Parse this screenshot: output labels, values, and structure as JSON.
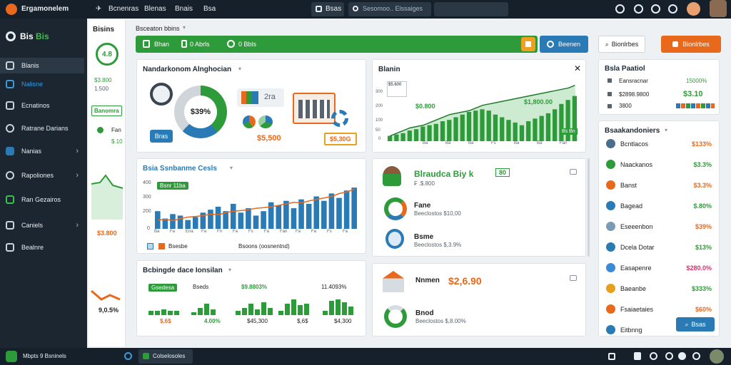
{
  "topbar": {
    "app_name": "Ergamonelem",
    "nav": [
      "Bcnenras",
      "Blenas",
      "Bnais",
      "Bsa"
    ],
    "view_label": "Bsas",
    "search_placeholder": "Sesomoo..  Elssaiges"
  },
  "sidebar": {
    "logo": "Bis",
    "logo_accent": "Bis",
    "items": [
      {
        "label": "Blanis",
        "icon": "home-icon",
        "active": true
      },
      {
        "label": "Nalisne",
        "icon": "trend-icon"
      },
      {
        "label": "Ecnatinos",
        "icon": "document-icon"
      },
      {
        "label": "Ratrane Darians",
        "icon": "search-icon"
      },
      {
        "label": "Nanias",
        "icon": "grid-icon",
        "chevron": true
      },
      {
        "label": "Rapoliones",
        "icon": "gear-icon",
        "chevron": true
      },
      {
        "label": "Ran Gezairos",
        "icon": "leaf-icon"
      },
      {
        "label": "Caniels",
        "icon": "lock-icon",
        "chevron": true
      },
      {
        "label": "Bealnre",
        "icon": "calendar-icon"
      }
    ]
  },
  "subnav": {
    "title": "Bisins",
    "badge": "4.8",
    "metric1": "$3.800",
    "metric1b": "1.500",
    "tag": "Banomra",
    "item2": "Fan",
    "item2_val": "$.10",
    "bottom_val": "$3.800",
    "bottom_pct": "9,0.5%"
  },
  "breadcrumb": "Bsceaton bbins",
  "toolbar": {
    "tabs": [
      "Bhan",
      "0 Abrls",
      "0 Bbls"
    ],
    "share": "Beenen"
  },
  "top_right": {
    "back_label": "Bionlrbes",
    "action_label": "Bionlrbes"
  },
  "card1": {
    "title": "Nandarkonom Alnghocian",
    "donut_pct": "$39%",
    "button": "Bras",
    "price": "$5,500",
    "chip": "$5,30G",
    "small": "2ra"
  },
  "card2": {
    "title": "Bsia Ssnbanme Cesls",
    "chip": "Bsnr 11ba",
    "ticks": [
      "400",
      "300",
      "200",
      "0"
    ],
    "xticks": [
      "Ba",
      "Fa",
      "Ena",
      "Fa",
      "Fn",
      "Fa",
      "Fs",
      "Fa",
      "Fan",
      "Fa",
      "Fa",
      "Fs",
      "Fa"
    ],
    "legend1": "Bsesbe",
    "legend2": "Bsoons (oosnentnd)",
    "chart_data": {
      "type": "bar",
      "values": [
        60,
        35,
        50,
        45,
        30,
        40,
        55,
        65,
        75,
        60,
        85,
        55,
        70,
        45,
        60,
        90,
        80,
        95,
        70,
        100,
        85,
        110,
        95,
        120,
        105,
        130,
        140
      ],
      "line": [
        30,
        32,
        28,
        35,
        40,
        42,
        45,
        50,
        48,
        55,
        60,
        62,
        65,
        70,
        72,
        75,
        80,
        85,
        90,
        88,
        95,
        100,
        105,
        110,
        120,
        125,
        135
      ]
    }
  },
  "card3": {
    "title": "Bcbingde dace Ionsilan",
    "chip": "Gsedesa",
    "stats": [
      "Bseds",
      "$9.8803%",
      "11.4093%"
    ],
    "bottom": [
      "$,6$",
      "4.00%",
      "$45,300",
      "$,6$",
      "$4,300"
    ]
  },
  "card4": {
    "title": "Blanin",
    "legend": "$5.600",
    "chip": "Bs Bn",
    "v1": "$0.800",
    "v2": "$1,800.00",
    "ticks": [
      "300",
      "200",
      "100",
      "50",
      "0"
    ],
    "xticks": [
      "Ba",
      "Ba",
      "Ba",
      "Fs",
      "Ba",
      "Ba",
      "Fan"
    ],
    "chart_data": {
      "type": "bar",
      "values": [
        20,
        25,
        30,
        40,
        45,
        55,
        60,
        65,
        75,
        80,
        90,
        100,
        110,
        115,
        120,
        115,
        100,
        90,
        80,
        70,
        60,
        75,
        85,
        95,
        105,
        120,
        140,
        155,
        170
      ],
      "line": [
        20,
        30,
        40,
        50,
        55,
        60,
        70,
        80,
        90,
        100,
        105,
        110,
        115,
        125,
        135,
        140,
        145,
        150,
        155,
        160,
        165,
        170,
        175,
        180,
        185,
        190,
        195,
        200,
        210
      ]
    }
  },
  "card5": {
    "name": "Blraudca Biy k",
    "name_tag": "80",
    "subtitle": "₣ .$.800",
    "row1_label": "Fane",
    "row1_sub": "Beeclostos $10,00",
    "row2_label": "Bsme",
    "row2_sub": "Beeclostos $,3.9%"
  },
  "card6": {
    "title": "Nnmen",
    "value": "$2,6.90",
    "row_label": "Bnod",
    "row_sub": "Beeclostos $,8.00%"
  },
  "right_panel": {
    "title": "Bsla Paatiol",
    "rows": [
      {
        "label": "Eansracnar",
        "value": "15000%"
      },
      {
        "label": "$2898.9800",
        "value": "$3.10"
      },
      {
        "label": "3800",
        "value": ""
      }
    ],
    "list_title": "Bsaakandoniers",
    "list": [
      {
        "label": "Bcntlacos",
        "value": "$133%",
        "icon_color": "#4a6d8c",
        "value_color": "#e8691c"
      },
      {
        "label": "Naackanos",
        "value": "$3.3%",
        "icon_color": "#2e9b3a",
        "value_color": "#2e9b3a"
      },
      {
        "label": "Banst",
        "value": "$3.3%",
        "icon_color": "#e8691c",
        "value_color": "#e8691c"
      },
      {
        "label": "Bagead",
        "value": "$.80%",
        "icon_color": "#2a7ab5",
        "value_color": "#2e9b3a"
      },
      {
        "label": "Eseeenbon",
        "value": "$39%",
        "icon_color": "#7a9bb5",
        "value_color": "#e8691c"
      },
      {
        "label": "Dcela Dotar",
        "value": "$13%",
        "icon_color": "#2a7ab5",
        "value_color": "#2e9b3a"
      },
      {
        "label": "Easapenre",
        "value": "$280.0%",
        "icon_color": "#3a8ad6",
        "value_color": "#d6336c"
      },
      {
        "label": "Baeanbe",
        "value": "$333%",
        "icon_color": "#e8a01c",
        "value_color": "#2e9b3a"
      },
      {
        "label": "Fsaiaetaies",
        "value": "$60%",
        "icon_color": "#e8691c",
        "value_color": "#e8691c"
      },
      {
        "label": "Eitbnng",
        "value": "",
        "icon_color": "#2a7ab5",
        "value_color": "#2e9b3a"
      }
    ],
    "list_button": "Bsas"
  },
  "bottombar": {
    "left_text": "Mbpts  9 Bsninels",
    "tab_label": "Colselosoles"
  },
  "colors": {
    "green": "#2e9b3a",
    "orange": "#e8691c",
    "blue": "#2a7ab5",
    "dark": "#16202a"
  }
}
